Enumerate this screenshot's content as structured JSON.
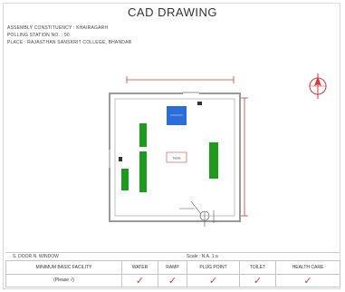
{
  "title": "CAD DRAWING",
  "header": {
    "line1": "ASSEMBLY CONSTITUENCY : KHAIRAGARH",
    "line2": "POLLING STATION NO. : 90",
    "line3": "PLACE : RAJASTHAN SANSKRIT COLLEGE, BHANDAR"
  },
  "plan": {
    "room_label": "Table"
  },
  "footer": {
    "left_text": "S. DOOR  N. WINDOW",
    "mid_text": "Scale : N.A. 1:a",
    "facility_label": "MINIMUM BASIC FACILITY",
    "facility_sub": "(Please √)",
    "columns": [
      "WATER",
      "RAMP",
      "PLUG POINT",
      "TOILET",
      "HEALTH CARE"
    ],
    "tick_glyph": "✓"
  },
  "colors": {
    "green": "#1e9a1e",
    "blue": "#2a6fd6",
    "red": "#d23a3a"
  }
}
